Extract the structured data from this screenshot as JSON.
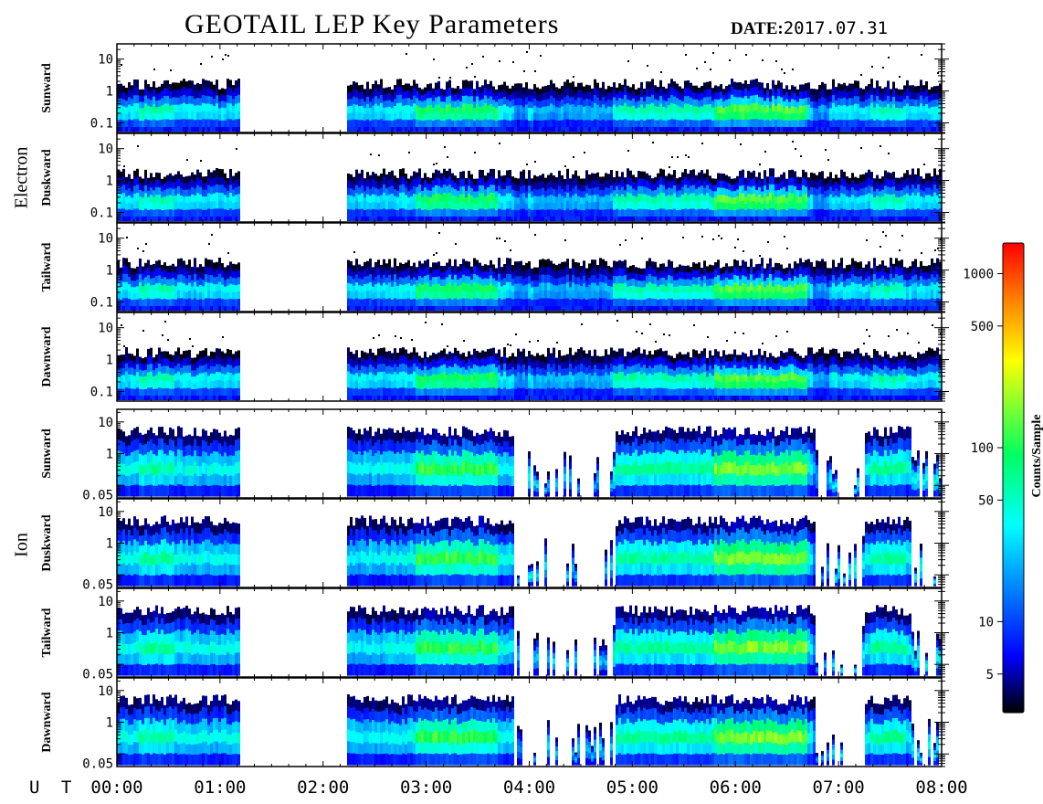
{
  "title": "GEOTAIL LEP Key Parameters",
  "date_label": "DATE:",
  "date_value": "2017.07.31",
  "colors": {
    "colormap": [
      "#000000",
      "#0000ff",
      "#00ffff",
      "#00ff60",
      "#ffff00",
      "#ff8000",
      "#ff0000"
    ]
  },
  "chart_data": {
    "type": "heatmap",
    "x_axis": {
      "label": "U T",
      "ticks": [
        "00:00",
        "01:00",
        "02:00",
        "03:00",
        "04:00",
        "05:00",
        "06:00",
        "07:00",
        "08:00"
      ],
      "range_hours": [
        0,
        8
      ]
    },
    "colorbar": {
      "label": "Counts/Sample",
      "scale": "log",
      "range": [
        3,
        1500
      ],
      "ticks": [
        5,
        10,
        50,
        100,
        500,
        1000
      ]
    },
    "data_gaps_hours": [
      [
        1.2,
        2.22
      ]
    ],
    "groups": [
      {
        "name": "Electron",
        "y_scale": "log",
        "y_range": [
          0.05,
          30
        ],
        "y_ticks": [
          "0.1",
          "1",
          "10"
        ],
        "panels": [
          {
            "name": "Sunward"
          },
          {
            "name": "Duskward"
          },
          {
            "name": "Tailward"
          },
          {
            "name": "Dawnward"
          }
        ]
      },
      {
        "name": "Ion",
        "y_scale": "log",
        "y_range": [
          0.04,
          25
        ],
        "y_ticks": [
          "0.05",
          "1",
          "10"
        ],
        "panels": [
          {
            "name": "Sunward"
          },
          {
            "name": "Duskward"
          },
          {
            "name": "Tailward"
          },
          {
            "name": "Dawnward"
          }
        ]
      }
    ],
    "peak_intensity_intervals_hours": [
      {
        "interval": [
          2.9,
          3.7
        ],
        "approx_counts": 150
      },
      {
        "interval": [
          5.8,
          6.7
        ],
        "approx_counts": 200
      }
    ]
  }
}
